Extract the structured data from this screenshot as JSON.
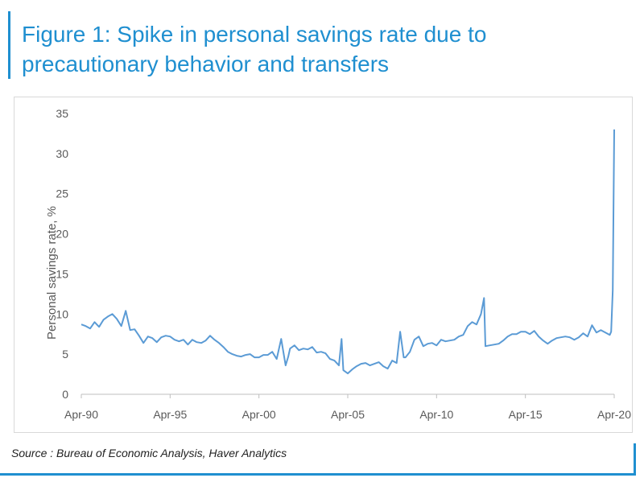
{
  "figure": {
    "title": "Figure 1: Spike in personal savings rate due to precautionary behavior and transfers",
    "source": "Source : Bureau of Economic Analysis, Haver Analytics"
  },
  "colors": {
    "accent": "#1f8fd0",
    "line": "#5b9bd5",
    "axis": "#bfbfbf",
    "tick_text": "#595959"
  },
  "chart_data": {
    "type": "line",
    "title": "",
    "xlabel": "",
    "ylabel": "Personal savings rate, %",
    "xlim": [
      1990.25,
      2020.25
    ],
    "ylim": [
      0,
      35
    ],
    "y_ticks": [
      0,
      5,
      10,
      15,
      20,
      25,
      30,
      35
    ],
    "x_ticks": [
      {
        "x": 1990.25,
        "label": "Apr-90"
      },
      {
        "x": 1995.25,
        "label": "Apr-95"
      },
      {
        "x": 2000.25,
        "label": "Apr-00"
      },
      {
        "x": 2005.25,
        "label": "Apr-05"
      },
      {
        "x": 2010.25,
        "label": "Apr-10"
      },
      {
        "x": 2015.25,
        "label": "Apr-15"
      },
      {
        "x": 2020.25,
        "label": "Apr-20"
      }
    ],
    "grid": false,
    "legend": "none",
    "series": [
      {
        "x": [
          1990.25,
          1990.5,
          1990.75,
          1991.0,
          1991.25,
          1991.5,
          1991.75,
          1992.0,
          1992.25,
          1992.5,
          1992.75,
          1993.0,
          1993.25,
          1993.5,
          1993.75,
          1994.0,
          1994.25,
          1994.5,
          1994.75,
          1995.0,
          1995.25,
          1995.5,
          1995.75,
          1996.0,
          1996.25,
          1996.5,
          1996.75,
          1997.0,
          1997.25,
          1997.5,
          1997.75,
          1998.0,
          1998.25,
          1998.5,
          1998.75,
          1999.0,
          1999.25,
          1999.5,
          1999.75,
          2000.0,
          2000.25,
          2000.5,
          2000.75,
          2001.0,
          2001.25,
          2001.5,
          2001.75,
          2001.9,
          2002.0,
          2002.25,
          2002.5,
          2002.75,
          2003.0,
          2003.25,
          2003.5,
          2003.75,
          2004.0,
          2004.25,
          2004.5,
          2004.75,
          2004.9,
          2005.0,
          2005.25,
          2005.5,
          2005.75,
          2006.0,
          2006.25,
          2006.5,
          2006.75,
          2007.0,
          2007.25,
          2007.5,
          2007.75,
          2008.0,
          2008.2,
          2008.4,
          2008.5,
          2008.75,
          2009.0,
          2009.25,
          2009.5,
          2009.75,
          2010.0,
          2010.25,
          2010.5,
          2010.75,
          2011.0,
          2011.25,
          2011.5,
          2011.75,
          2012.0,
          2012.25,
          2012.5,
          2012.75,
          2012.92,
          2013.0,
          2013.25,
          2013.5,
          2013.75,
          2014.0,
          2014.25,
          2014.5,
          2014.75,
          2015.0,
          2015.25,
          2015.5,
          2015.75,
          2016.0,
          2016.25,
          2016.5,
          2016.75,
          2017.0,
          2017.25,
          2017.5,
          2017.75,
          2018.0,
          2018.25,
          2018.5,
          2018.75,
          2019.0,
          2019.25,
          2019.5,
          2019.75,
          2020.0,
          2020.08,
          2020.17,
          2020.25
        ],
        "values": [
          8.7,
          8.5,
          8.2,
          9.0,
          8.4,
          9.3,
          9.7,
          10.0,
          9.4,
          8.5,
          10.4,
          8.0,
          8.1,
          7.3,
          6.4,
          7.2,
          7.0,
          6.5,
          7.1,
          7.3,
          7.2,
          6.8,
          6.6,
          6.8,
          6.2,
          6.8,
          6.5,
          6.4,
          6.7,
          7.3,
          6.8,
          6.4,
          5.9,
          5.3,
          5.0,
          4.8,
          4.7,
          4.9,
          5.0,
          4.6,
          4.6,
          4.9,
          4.9,
          5.3,
          4.4,
          6.9,
          3.6,
          4.7,
          5.7,
          6.1,
          5.5,
          5.7,
          5.6,
          5.9,
          5.2,
          5.3,
          5.1,
          4.4,
          4.2,
          3.6,
          6.9,
          3.0,
          2.6,
          3.1,
          3.5,
          3.8,
          3.9,
          3.6,
          3.8,
          4.0,
          3.5,
          3.2,
          4.2,
          3.9,
          7.8,
          4.6,
          4.6,
          5.3,
          6.8,
          7.2,
          6.0,
          6.3,
          6.4,
          6.1,
          6.8,
          6.6,
          6.7,
          6.8,
          7.2,
          7.4,
          8.5,
          9.0,
          8.7,
          10.0,
          12.0,
          6.0,
          6.1,
          6.2,
          6.3,
          6.7,
          7.2,
          7.5,
          7.5,
          7.8,
          7.8,
          7.5,
          7.9,
          7.2,
          6.7,
          6.3,
          6.7,
          7.0,
          7.1,
          7.2,
          7.1,
          6.8,
          7.1,
          7.6,
          7.2,
          8.6,
          7.7,
          8.0,
          7.7,
          7.4,
          7.8,
          13.0,
          33.0
        ]
      }
    ]
  }
}
